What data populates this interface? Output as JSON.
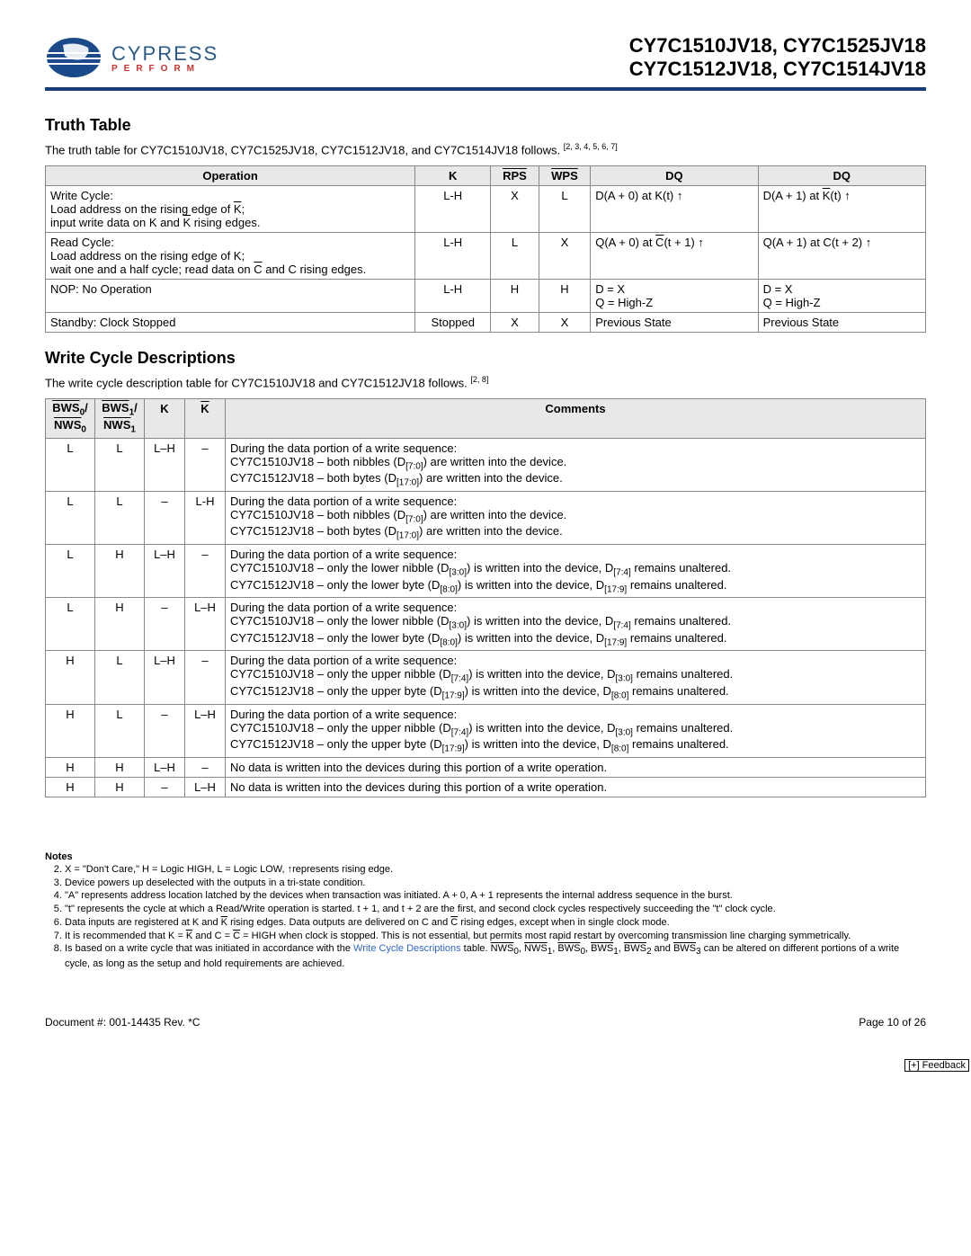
{
  "header": {
    "logo_main": "CYPRESS",
    "logo_sub": "PERFORM",
    "parts_line1": "CY7C1510JV18, CY7C1525JV18",
    "parts_line2": "CY7C1512JV18, CY7C1514JV18"
  },
  "sec1": {
    "title": "Truth Table",
    "intro_a": "The truth table for CY7C1510JV18, CY7C1525JV18, CY7C1512JV18, and CY7C1514JV18 follows. ",
    "intro_sup": "[2, 3, 4, 5, 6, 7]",
    "headers": {
      "op": "Operation",
      "k": "K",
      "rps": "RPS",
      "wps": "WPS",
      "dq1": "DQ",
      "dq2": "DQ"
    },
    "rows": [
      {
        "op_l1": "Write Cycle:",
        "op_l2_a": "Load address on the rising edge of ",
        "op_l2_k": "K",
        "op_l2_b": ";",
        "op_l3_a": "input write data on K and ",
        "op_l3_k": "K",
        "op_l3_b": " rising edges.",
        "k": "L-H",
        "rps": "X",
        "wps": "L",
        "dq1_a": "D(A + 0) at K(t) ",
        "dq1_b": "",
        "dq2_a": "D(A + 1) at ",
        "dq2_k": "K",
        "dq2_b": "(t) "
      },
      {
        "op_l1": "Read Cycle:",
        "op_l2_a": "Load address on the rising edge of K;",
        "op_l2_k": "",
        "op_l2_b": "",
        "op_l3_a": "wait one and a half cycle; read data on ",
        "op_l3_k": "C",
        "op_l3_b": " and C rising edges.",
        "k": "L-H",
        "rps": "L",
        "wps": "X",
        "dq1_a": "Q(A + 0) at ",
        "dq1_k": "C",
        "dq1_b": "(t + 1) ",
        "dq2_a": "Q(A + 1) at C(t + 2) ",
        "dq2_k": "",
        "dq2_b": ""
      },
      {
        "op": "NOP: No Operation",
        "k": "L-H",
        "rps": "H",
        "wps": "H",
        "dq1_l1": "D = X",
        "dq1_l2": "Q = High-Z",
        "dq2_l1": "D = X",
        "dq2_l2": "Q = High-Z"
      },
      {
        "op": "Standby: Clock Stopped",
        "k": "Stopped",
        "rps": "X",
        "wps": "X",
        "dq1": "Previous State",
        "dq2": "Previous State"
      }
    ]
  },
  "sec2": {
    "title": "Write Cycle Descriptions",
    "intro_a": "The write cycle description table for CY7C1510JV18 and CY7C1512JV18 follows. ",
    "intro_sup": "[2, 8]",
    "headers": {
      "b0_top": "BWS",
      "b0_sub0": "0",
      "b0_slash": "/",
      "b0_bot": "NWS",
      "b0_sub1": "0",
      "b1_top": "BWS",
      "b1_sub0": "1",
      "b1_slash": "/",
      "b1_bot": "NWS",
      "b1_sub1": "1",
      "k": "K",
      "kbar": "K",
      "comments": "Comments"
    },
    "rows": [
      {
        "b0": "L",
        "b1": "L",
        "k": "L–H",
        "kb": "–",
        "c_l1": "During the data portion of a write sequence:",
        "c_l2_a": "CY7C1510JV18 – both nibbles (D",
        "c_l2_s": "[7:0]",
        "c_l2_b": ") are written into the device.",
        "c_l3_a": "CY7C1512JV18 – both bytes (D",
        "c_l3_s": "[17:0]",
        "c_l3_b": ") are written into the device."
      },
      {
        "b0": "L",
        "b1": "L",
        "k": "–",
        "kb": "L-H",
        "c_l1": "During the data portion of a write sequence:",
        "c_l2_a": "CY7C1510JV18 – both nibbles (D",
        "c_l2_s": "[7:0]",
        "c_l2_b": ") are written into the device.",
        "c_l3_a": "CY7C1512JV18 – both bytes (D",
        "c_l3_s": "[17:0]",
        "c_l3_b": ") are written into the device."
      },
      {
        "b0": "L",
        "b1": "H",
        "k": "L–H",
        "kb": "–",
        "c_l1": "During the data portion of a write sequence:",
        "c_l2_a": "CY7C1510JV18 – only the lower nibble (D",
        "c_l2_s": "[3:0]",
        "c_l2_b": ") is written into the device, D",
        "c_l2_s2": "[7:4]",
        "c_l2_c": " remains unaltered.",
        "c_l3_a": "CY7C1512JV18 – only the lower byte (D",
        "c_l3_s": "[8:0]",
        "c_l3_b": ") is written into the device, D",
        "c_l3_s2": "[17:9]",
        "c_l3_c": " remains unaltered."
      },
      {
        "b0": "L",
        "b1": "H",
        "k": "–",
        "kb": "L–H",
        "c_l1": "During the data portion of a write sequence:",
        "c_l2_a": "CY7C1510JV18 – only the lower nibble (D",
        "c_l2_s": "[3:0]",
        "c_l2_b": ") is written into the device, D",
        "c_l2_s2": "[7:4]",
        "c_l2_c": " remains unaltered.",
        "c_l3_a": "CY7C1512JV18 – only the lower byte (D",
        "c_l3_s": "[8:0]",
        "c_l3_b": ") is written into the device, D",
        "c_l3_s2": "[17:9]",
        "c_l3_c": " remains unaltered."
      },
      {
        "b0": "H",
        "b1": "L",
        "k": "L–H",
        "kb": "–",
        "c_l1": "During the data portion of a write sequence:",
        "c_l2_a": "CY7C1510JV18 – only the upper nibble (D",
        "c_l2_s": "[7:4]",
        "c_l2_b": ") is written into the device, D",
        "c_l2_s2": "[3:0]",
        "c_l2_c": " remains unaltered.",
        "c_l3_a": "CY7C1512JV18 – only the upper byte (D",
        "c_l3_s": "[17:9]",
        "c_l3_b": ") is written into the device, D",
        "c_l3_s2": "[8:0]",
        "c_l3_c": " remains unaltered."
      },
      {
        "b0": "H",
        "b1": "L",
        "k": "–",
        "kb": "L–H",
        "c_l1": "During the data portion of a write sequence:",
        "c_l2_a": "CY7C1510JV18 – only the upper nibble (D",
        "c_l2_s": "[7:4]",
        "c_l2_b": ") is written into the device, D",
        "c_l2_s2": "[3:0]",
        "c_l2_c": " remains unaltered.",
        "c_l3_a": "CY7C1512JV18 – only the upper byte (D",
        "c_l3_s": "[17:9]",
        "c_l3_b": ") is written into the device, D",
        "c_l3_s2": "[8:0]",
        "c_l3_c": " remains unaltered."
      },
      {
        "b0": "H",
        "b1": "H",
        "k": "L–H",
        "kb": "–",
        "c_l1": "No data is written into the devices during this portion of a write operation."
      },
      {
        "b0": "H",
        "b1": "H",
        "k": "–",
        "kb": "L–H",
        "c_l1": "No data is written into the devices during this portion of a write operation."
      }
    ]
  },
  "notes": {
    "title": "Notes",
    "n2": "X = \"Don't Care,\" H = Logic HIGH, L = Logic LOW, ↑represents rising edge.",
    "n3": "Device powers up deselected with the outputs in a tri-state condition.",
    "n4": "\"A\" represents address location latched by the devices when transaction was initiated. A + 0, A + 1 represents the internal address sequence in the burst.",
    "n5": "\"t\" represents the cycle at which a Read/Write operation is started. t + 1, and t + 2 are the first, and second clock cycles respectively succeeding the \"t\" clock cycle.",
    "n6_a": "Data inputs are registered at K and ",
    "n6_k": "K",
    "n6_b": " rising edges. Data outputs are delivered on C and ",
    "n6_c": "C",
    "n6_d": " rising edges, except when in single clock mode.",
    "n7_a": "It is recommended that K = ",
    "n7_k": "K",
    "n7_b": " and C = ",
    "n7_c": "C",
    "n7_d": " = HIGH when clock is stopped. This is not essential, but permits most rapid restart by overcoming transmission line charging symmetrically.",
    "n8_a": "Is based on a write cycle that was initiated in accordance with the ",
    "n8_link": "Write Cycle Descriptions",
    "n8_b": " table. ",
    "n8_sigs": [
      "NWS",
      "0",
      "NWS",
      "1",
      "BWS",
      "0",
      "BWS",
      "1",
      "BWS",
      "2",
      "BWS",
      "3"
    ],
    "n8_c": " can be altered on different portions of a write cycle, as long as the setup and hold requirements are achieved."
  },
  "footer": {
    "doc": "Document #: 001-14435 Rev. *C",
    "page": "Page 10 of 26",
    "feedback": "[+] Feedback"
  }
}
